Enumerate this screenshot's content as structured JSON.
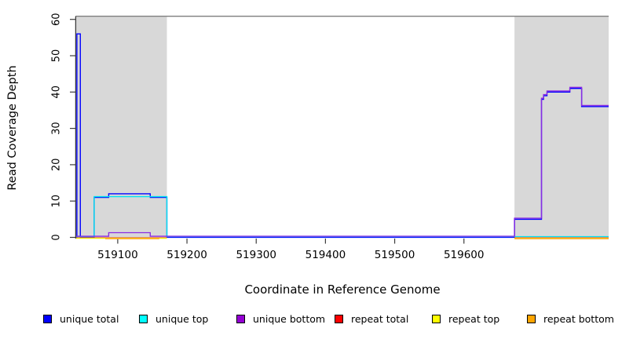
{
  "chart_data": {
    "type": "line",
    "title": "",
    "xlabel": "Coordinate in Reference Genome",
    "ylabel": "Read Coverage Depth",
    "xlim": [
      519040,
      519809
    ],
    "ylim": [
      0,
      61
    ],
    "xticks": [
      519100,
      519200,
      519300,
      519400,
      519500,
      519600
    ],
    "yticks": [
      0,
      10,
      20,
      30,
      40,
      50,
      60
    ],
    "grid": false,
    "legend_position": "bottom",
    "plot_background": "#ffffff",
    "repeat_region_fill": "#d8d8d8",
    "border_color": "#7d7d7d",
    "axis_color": "#3c3c3c",
    "repeat_regions": [
      [
        519040,
        519171
      ],
      [
        519673,
        519809
      ]
    ],
    "series": [
      {
        "name": "unique total",
        "color": "#0000FF",
        "runs": [
          [
            [
              519040,
              0
            ],
            [
              519041,
              56
            ],
            [
              519046,
              0
            ],
            [
              519066,
              11
            ],
            [
              519087,
              12
            ],
            [
              519147,
              11
            ],
            [
              519171,
              0
            ],
            [
              519673,
              5
            ],
            [
              519712,
              38
            ],
            [
              519715,
              39
            ],
            [
              519720,
              40
            ],
            [
              519753,
              41
            ],
            [
              519770,
              36
            ],
            [
              519809,
              36
            ]
          ]
        ]
      },
      {
        "name": "unique top",
        "color": "#00E5EE",
        "runs": [
          [
            [
              519040,
              0
            ],
            [
              519066,
              11
            ],
            [
              519171,
              0
            ],
            [
              519809,
              0
            ]
          ]
        ]
      },
      {
        "name": "unique bottom",
        "color": "#8A2BE2",
        "runs": [
          [
            [
              519040,
              0
            ],
            [
              519087,
              1
            ],
            [
              519147,
              0
            ],
            [
              519673,
              5
            ],
            [
              519712,
              38
            ],
            [
              519715,
              39
            ],
            [
              519720,
              40
            ],
            [
              519753,
              41
            ],
            [
              519770,
              36
            ],
            [
              519809,
              36
            ]
          ]
        ]
      },
      {
        "name": "repeat total",
        "color": "#E8303A",
        "runs": [
          [
            [
              519040,
              0
            ],
            [
              519171,
              0
            ]
          ],
          [
            [
              519673,
              0
            ],
            [
              519809,
              0
            ]
          ]
        ]
      },
      {
        "name": "repeat top",
        "color": "#EEE800",
        "runs": [
          [
            [
              519040,
              0
            ],
            [
              519171,
              0
            ]
          ],
          [
            [
              519673,
              0
            ],
            [
              519809,
              0
            ]
          ]
        ]
      },
      {
        "name": "repeat bottom",
        "color": "#FFA021",
        "runs": [
          [
            [
              519082,
              0
            ],
            [
              519160,
              0
            ]
          ],
          [
            [
              519673,
              0
            ],
            [
              519809,
              0
            ]
          ]
        ]
      }
    ]
  },
  "legend": {
    "items": [
      {
        "label": "unique total",
        "color": "#0000FF"
      },
      {
        "label": "unique top",
        "color": "#00FFFF"
      },
      {
        "label": "unique bottom",
        "color": "#9400D3"
      },
      {
        "label": "repeat total",
        "color": "#FF0000"
      },
      {
        "label": "repeat top",
        "color": "#FFFF00"
      },
      {
        "label": "repeat bottom",
        "color": "#FFA500"
      }
    ]
  }
}
